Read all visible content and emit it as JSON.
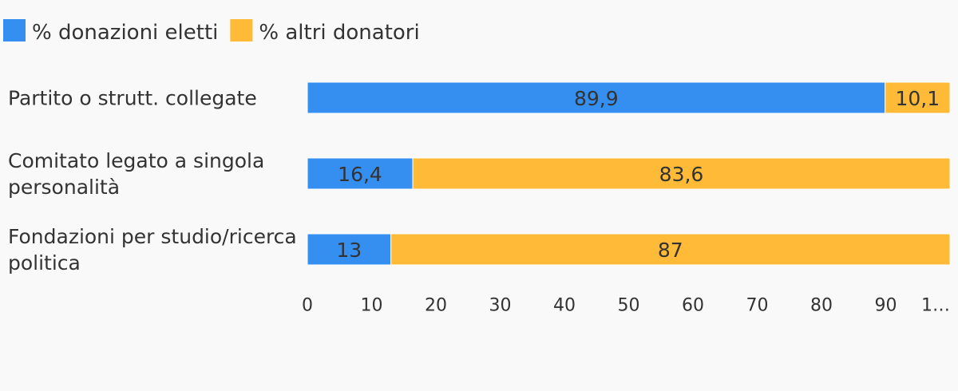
{
  "chart_data": {
    "type": "stacked-bar-horizontal",
    "categories": [
      "Partito o strutt. collegate",
      "Comitato legato a singola personalità",
      "Fondazioni per studio/ricerca politica"
    ],
    "series": [
      {
        "name": "% donazioni eletti",
        "color": "#348ff0",
        "values": [
          89.9,
          16.4,
          13
        ],
        "value_labels": [
          "89,9",
          "16,4",
          "13"
        ]
      },
      {
        "name": "% altri donatori",
        "color": "#ffba38",
        "values": [
          10.1,
          83.6,
          87
        ],
        "value_labels": [
          "10,1",
          "83,6",
          "87"
        ]
      }
    ],
    "xlim": [
      0,
      100
    ],
    "xticks": [
      0,
      10,
      20,
      30,
      40,
      50,
      60,
      70,
      80,
      90,
      {
        "value": 100,
        "label": "1…"
      }
    ],
    "legend": "top-left"
  }
}
